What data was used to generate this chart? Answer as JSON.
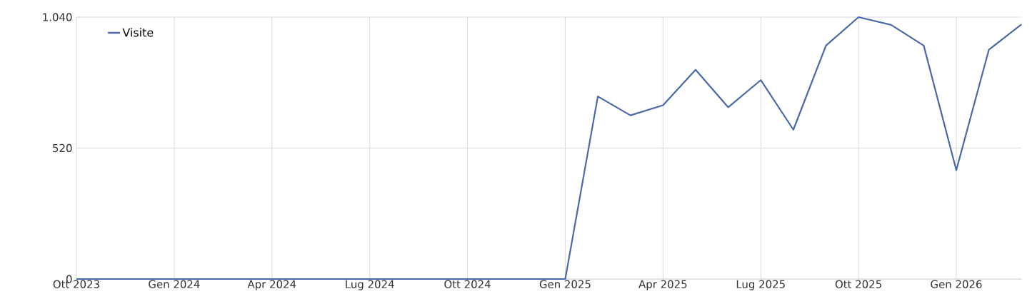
{
  "chart_data": {
    "type": "line",
    "x": [
      "2023-10",
      "2023-11",
      "2023-12",
      "2024-01",
      "2024-02",
      "2024-03",
      "2024-04",
      "2024-05",
      "2024-06",
      "2024-07",
      "2024-08",
      "2024-09",
      "2024-10",
      "2024-11",
      "2024-12",
      "2025-01",
      "2025-02",
      "2025-03",
      "2025-04",
      "2025-05",
      "2025-06",
      "2025-07",
      "2025-08",
      "2025-09",
      "2025-10",
      "2025-11",
      "2025-12",
      "2026-01",
      "2026-02",
      "2026-03"
    ],
    "series": [
      {
        "name": "Visite",
        "color": "#4a69a8",
        "values": [
          0,
          0,
          0,
          0,
          0,
          0,
          0,
          0,
          0,
          0,
          0,
          0,
          0,
          0,
          0,
          0,
          725,
          650,
          690,
          831,
          682,
          790,
          593,
          927,
          1040,
          1009,
          927,
          432,
          911,
          1011
        ]
      }
    ],
    "xlim": [
      "2023-10",
      "2026-03"
    ],
    "xticks": [
      {
        "value": "2023-10",
        "label": "Ott 2023"
      },
      {
        "value": "2024-01",
        "label": "Gen 2024"
      },
      {
        "value": "2024-04",
        "label": "Apr 2024"
      },
      {
        "value": "2024-07",
        "label": "Lug 2024"
      },
      {
        "value": "2024-10",
        "label": "Ott 2024"
      },
      {
        "value": "2025-01",
        "label": "Gen 2025"
      },
      {
        "value": "2025-04",
        "label": "Apr 2025"
      },
      {
        "value": "2025-07",
        "label": "Lug 2025"
      },
      {
        "value": "2025-10",
        "label": "Ott 2025"
      },
      {
        "value": "2026-01",
        "label": "Gen 2026"
      }
    ],
    "ylim": [
      0,
      1040
    ],
    "yticks": [
      0,
      520,
      {
        "value": 1040,
        "label": "1.040"
      }
    ],
    "grid": true,
    "legend": "top left",
    "marker": "none",
    "line_style": "solid"
  }
}
